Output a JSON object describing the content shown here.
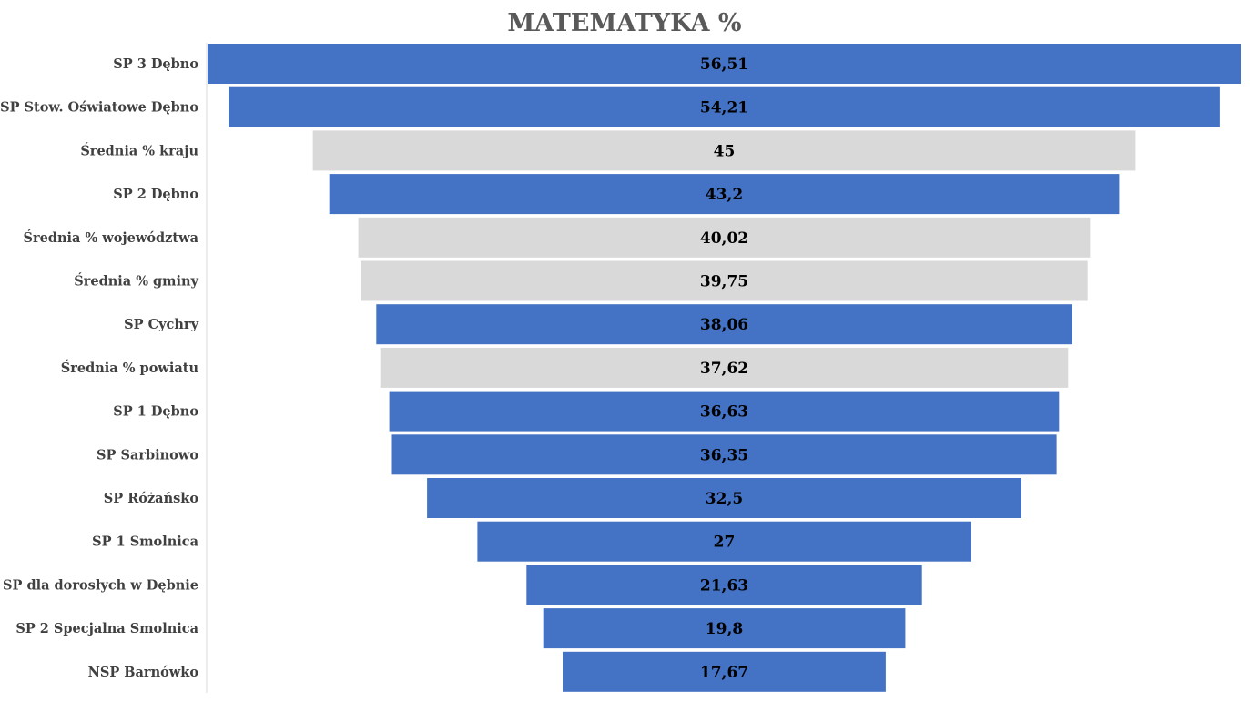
{
  "chart_data": {
    "type": "bar",
    "orientation": "horizontal-funnel",
    "title": "MATEMATYKA %",
    "categories": [
      "SP 3 Dębno",
      "SP Stow. Oświatowe Dębno",
      "Średnia % kraju",
      "SP 2 Dębno",
      "Średnia % województwa",
      "Średnia % gminy",
      "SP Cychry",
      "Średnia % powiatu",
      "SP 1 Dębno",
      "SP Sarbinowo",
      "SP Różańsko",
      "SP 1 Smolnica",
      "SP dla dorosłych w Dębnie",
      "SP 2 Specjalna Smolnica",
      "NSP Barnówko"
    ],
    "values": [
      56.51,
      54.21,
      45,
      43.2,
      40.02,
      39.75,
      38.06,
      37.62,
      36.63,
      36.35,
      32.5,
      27,
      21.63,
      19.8,
      17.67
    ],
    "value_labels": [
      "56,51",
      "54,21",
      "45",
      "43,2",
      "40,02",
      "39,75",
      "38,06",
      "37,62",
      "36,63",
      "36,35",
      "32,5",
      "27",
      "21,63",
      "19,8",
      "17,67"
    ],
    "bar_kind": [
      "school",
      "school",
      "average",
      "school",
      "average",
      "average",
      "school",
      "average",
      "school",
      "school",
      "school",
      "school",
      "school",
      "school",
      "school"
    ],
    "xlim": [
      0,
      56.51
    ],
    "colors": {
      "school": "#4472C4",
      "average": "#D9D9D9",
      "axis_line": "#D9D9D9"
    },
    "legend": "none",
    "grid": false
  }
}
